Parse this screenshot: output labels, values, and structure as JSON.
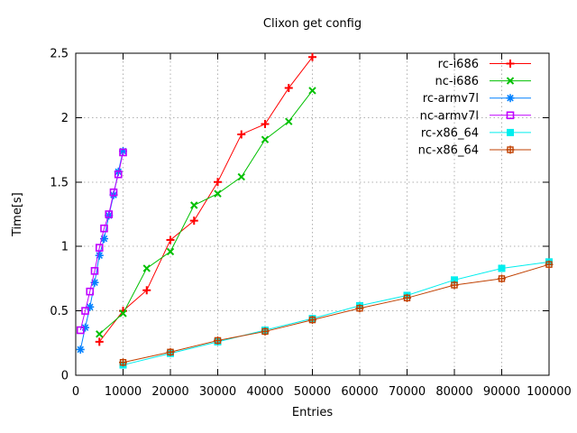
{
  "chart_data": {
    "type": "line",
    "title": "Clixon get config",
    "xlabel": "Entries",
    "ylabel": "Time[s]",
    "xlim": [
      0,
      100000
    ],
    "ylim": [
      0,
      2.5
    ],
    "xticks": [
      0,
      10000,
      20000,
      30000,
      40000,
      50000,
      60000,
      70000,
      80000,
      90000,
      100000
    ],
    "yticks": [
      0,
      0.5,
      1,
      1.5,
      2,
      2.5
    ],
    "grid": true,
    "legend_position": "top-right-inside",
    "background_color": "#ffffff",
    "text_color": "#000000",
    "grid_color": "#b0b0b0",
    "border_color": "#000000",
    "series": [
      {
        "name": "rc-i686",
        "color": "#ff0000",
        "marker": "plus",
        "x": [
          5000,
          10000,
          15000,
          20000,
          25000,
          30000,
          35000,
          40000,
          45000,
          50000
        ],
        "y": [
          0.26,
          0.5,
          0.66,
          1.05,
          1.2,
          1.5,
          1.87,
          1.95,
          2.23,
          2.47
        ]
      },
      {
        "name": "nc-i686",
        "color": "#00c000",
        "marker": "cross",
        "x": [
          5000,
          10000,
          15000,
          20000,
          25000,
          30000,
          35000,
          40000,
          45000,
          50000
        ],
        "y": [
          0.32,
          0.48,
          0.83,
          0.96,
          1.32,
          1.41,
          1.54,
          1.83,
          1.97,
          2.21
        ]
      },
      {
        "name": "rc-armv7l",
        "color": "#0080ff",
        "marker": "asterisk",
        "x": [
          1000,
          2000,
          3000,
          4000,
          5000,
          6000,
          7000,
          8000,
          9000,
          10000
        ],
        "y": [
          0.2,
          0.37,
          0.53,
          0.72,
          0.93,
          1.06,
          1.24,
          1.4,
          1.58,
          1.74
        ]
      },
      {
        "name": "nc-armv7l",
        "color": "#c000ff",
        "marker": "open-square",
        "x": [
          1000,
          2000,
          3000,
          4000,
          5000,
          6000,
          7000,
          8000,
          9000,
          10000
        ],
        "y": [
          0.35,
          0.5,
          0.65,
          0.81,
          0.99,
          1.14,
          1.25,
          1.42,
          1.56,
          1.73
        ]
      },
      {
        "name": "rc-x86_64",
        "color": "#00eeee",
        "marker": "filled-square",
        "x": [
          10000,
          20000,
          30000,
          40000,
          50000,
          60000,
          70000,
          80000,
          90000,
          100000
        ],
        "y": [
          0.08,
          0.17,
          0.26,
          0.35,
          0.44,
          0.54,
          0.62,
          0.74,
          0.83,
          0.88
        ]
      },
      {
        "name": "nc-x86_64",
        "color": "#c04000",
        "marker": "boxed-plus",
        "x": [
          10000,
          20000,
          30000,
          40000,
          50000,
          60000,
          70000,
          80000,
          90000,
          100000
        ],
        "y": [
          0.1,
          0.18,
          0.27,
          0.34,
          0.43,
          0.52,
          0.6,
          0.7,
          0.75,
          0.86
        ]
      }
    ]
  }
}
